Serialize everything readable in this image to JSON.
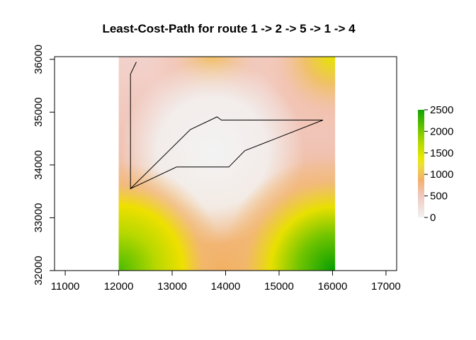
{
  "chart_data": {
    "type": "heatmap",
    "title": "Least-Cost-Path for route 1 -> 2 -> 5 -> 1 -> 4",
    "xlabel": "",
    "ylabel": "",
    "xlim": [
      10800,
      17200
    ],
    "ylim": [
      32000,
      36050
    ],
    "x_ticks": [
      11000,
      12000,
      13000,
      14000,
      15000,
      16000,
      17000
    ],
    "y_ticks": [
      32000,
      33000,
      34000,
      35000,
      36000
    ],
    "x_tick_labels": [
      "11000",
      "12000",
      "13000",
      "14000",
      "15000",
      "16000",
      "17000"
    ],
    "y_tick_labels": [
      "32000",
      "33000",
      "34000",
      "35000",
      "36000"
    ],
    "raster_extent": {
      "xmin": 12000,
      "xmax": 16050,
      "ymin": 32000,
      "ymax": 36050
    },
    "colorbar": {
      "min": 0,
      "max": 2500,
      "ticks": [
        0,
        500,
        1000,
        1500,
        2000,
        2500
      ],
      "tick_labels": [
        "0",
        "500",
        "1000",
        "1500",
        "2000",
        "2500"
      ],
      "colors": [
        "#f2f2f2",
        "#f0c8c0",
        "#f2b06a",
        "#eedc3c",
        "#e8e800",
        "#b2d800",
        "#5fc000",
        "#12a400"
      ]
    },
    "path": {
      "color": "#000000",
      "points": [
        [
          12330,
          35950
        ],
        [
          12220,
          35720
        ],
        [
          12220,
          33550
        ],
        [
          13340,
          34670
        ],
        [
          13840,
          34910
        ],
        [
          13920,
          34850
        ],
        [
          15820,
          34850
        ],
        [
          14360,
          34270
        ],
        [
          14060,
          33960
        ],
        [
          13080,
          33960
        ],
        [
          12220,
          33550
        ]
      ]
    },
    "grid": false,
    "legend_position": "right"
  }
}
